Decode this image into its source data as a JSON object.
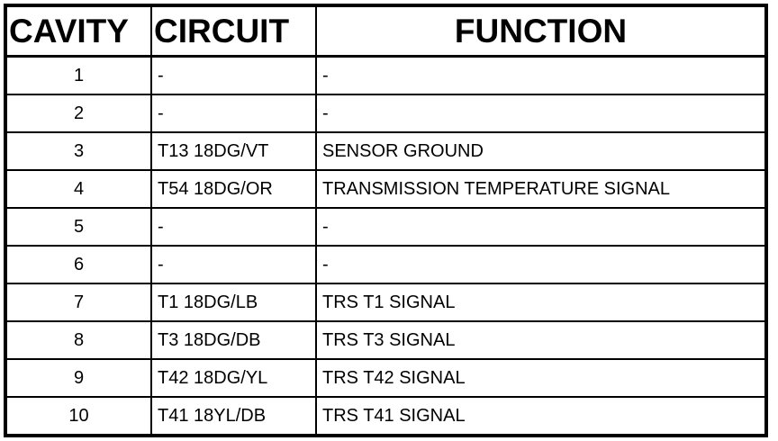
{
  "headers": {
    "cavity": "CAVITY",
    "circuit": "CIRCUIT",
    "function": "FUNCTION"
  },
  "rows": [
    {
      "cavity": "1",
      "circuit": "-",
      "function": "-"
    },
    {
      "cavity": "2",
      "circuit": "-",
      "function": "-"
    },
    {
      "cavity": "3",
      "circuit": "T13 18DG/VT",
      "function": "SENSOR GROUND"
    },
    {
      "cavity": "4",
      "circuit": "T54 18DG/OR",
      "function": "TRANSMISSION TEMPERATURE SIGNAL"
    },
    {
      "cavity": "5",
      "circuit": "-",
      "function": "-"
    },
    {
      "cavity": "6",
      "circuit": "-",
      "function": "-"
    },
    {
      "cavity": "7",
      "circuit": "T1 18DG/LB",
      "function": "TRS T1 SIGNAL"
    },
    {
      "cavity": "8",
      "circuit": "T3 18DG/DB",
      "function": "TRS T3 SIGNAL"
    },
    {
      "cavity": "9",
      "circuit": "T42 18DG/YL",
      "function": "TRS T42 SIGNAL"
    },
    {
      "cavity": "10",
      "circuit": "T41 18YL/DB",
      "function": "TRS T41 SIGNAL"
    }
  ]
}
